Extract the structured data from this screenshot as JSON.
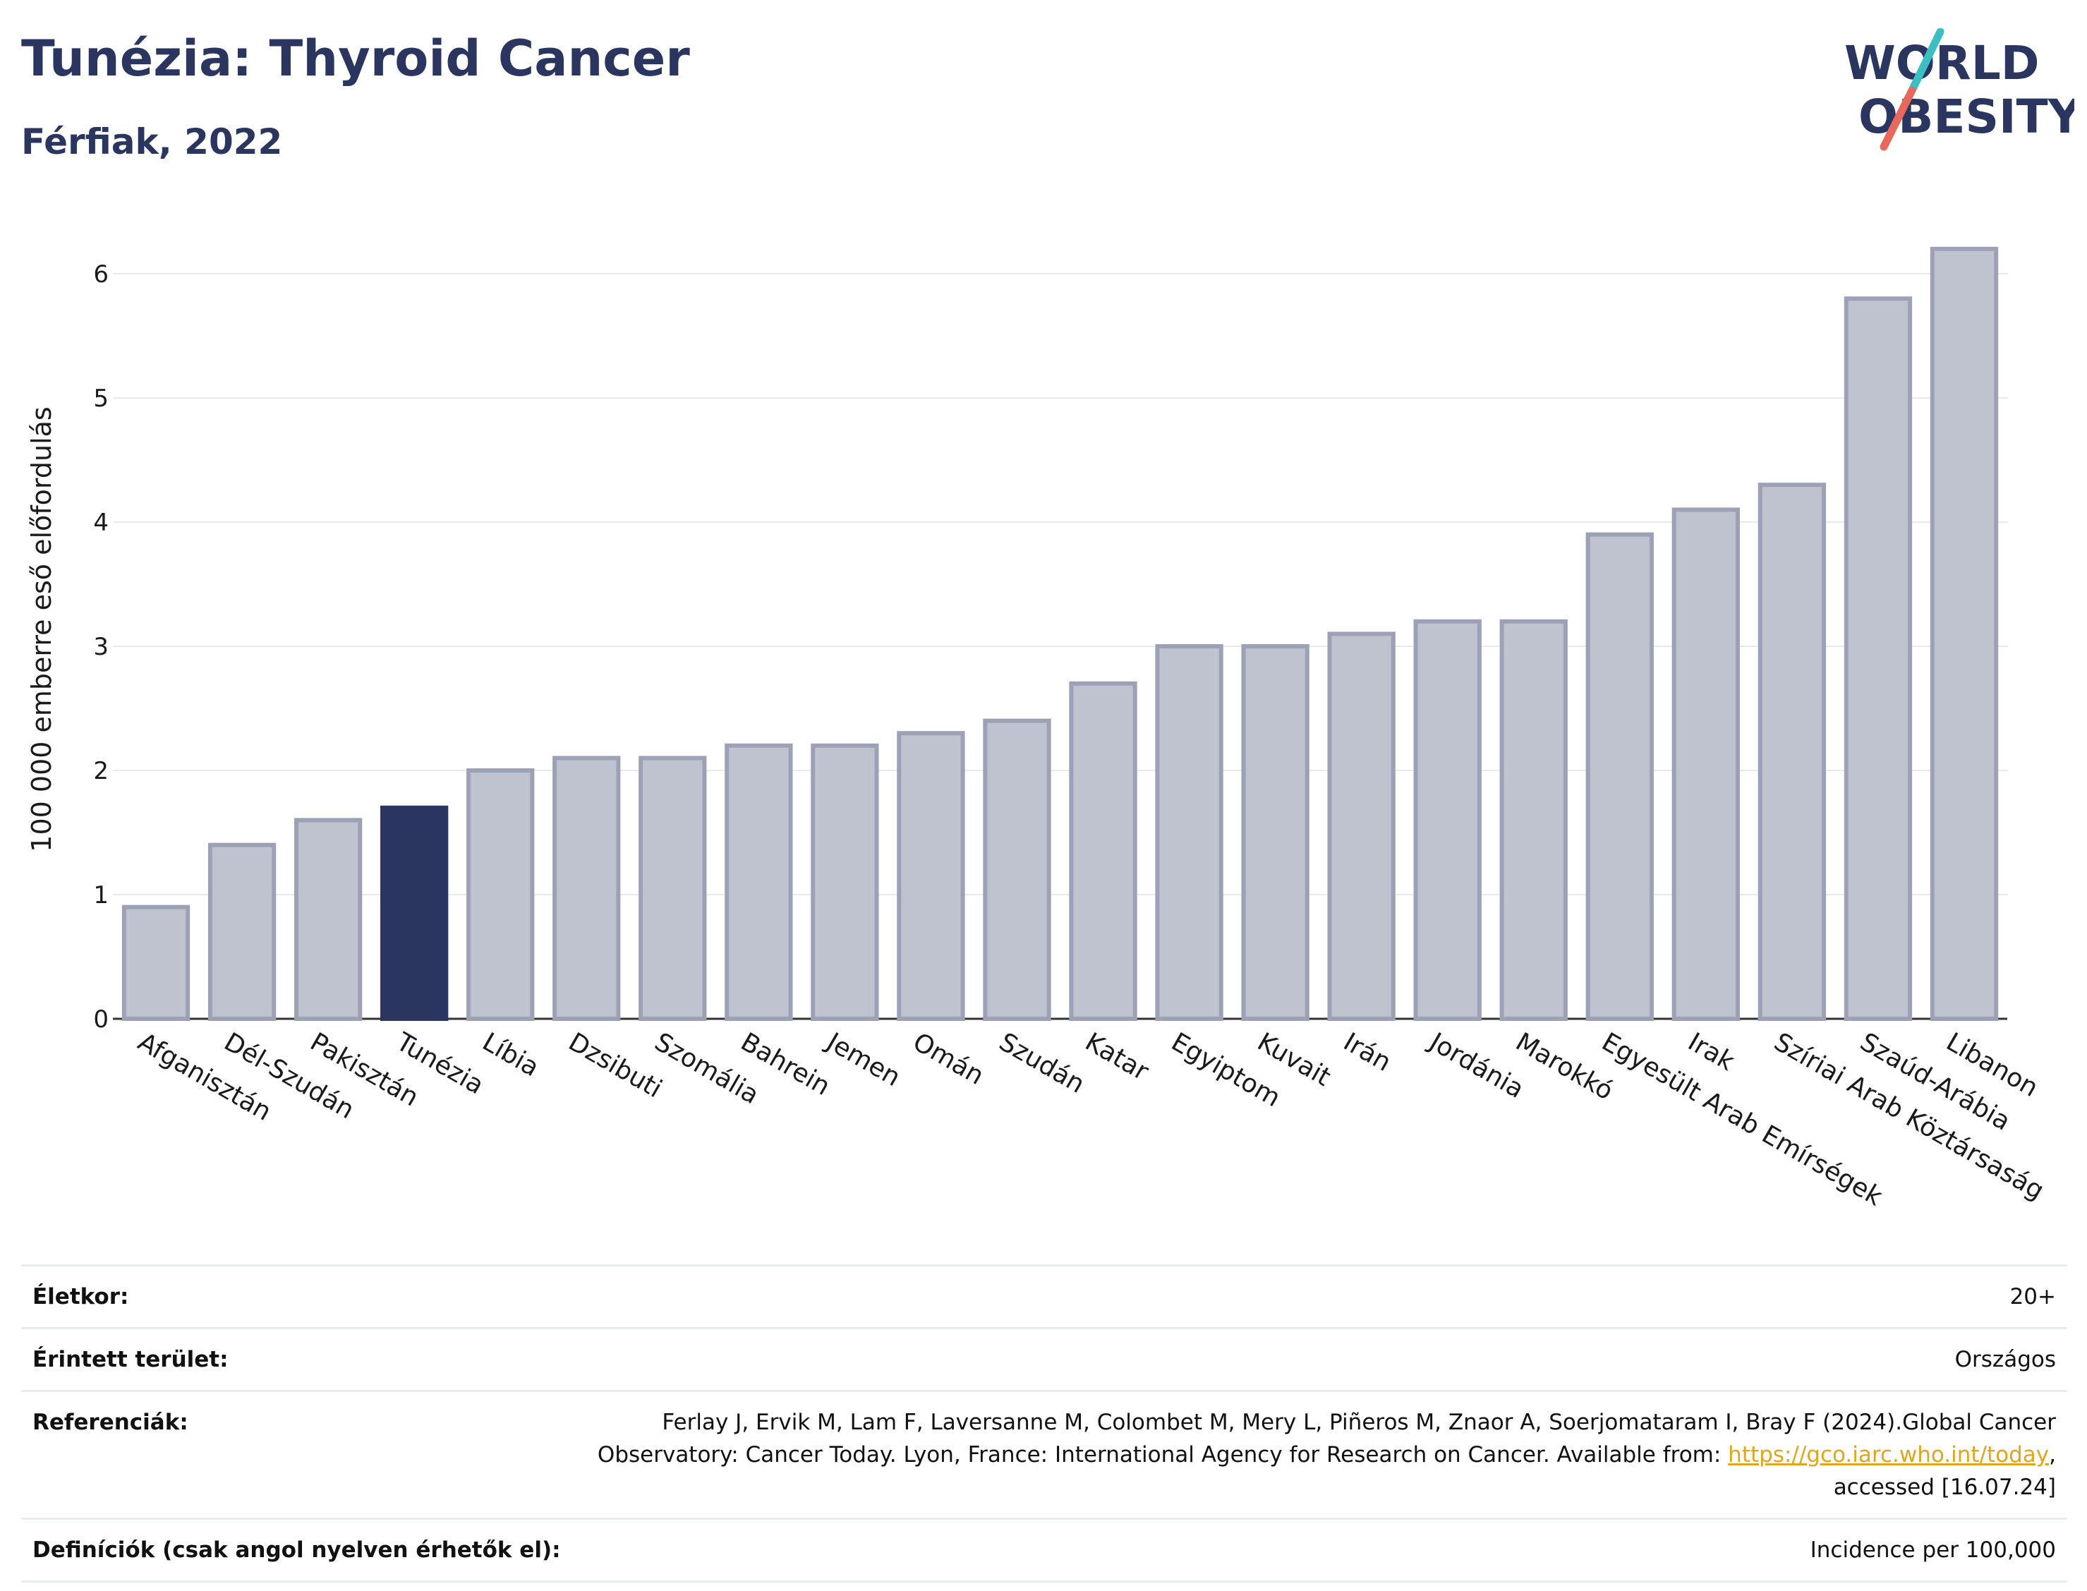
{
  "header": {
    "title": "Tunézia: Thyroid Cancer",
    "subtitle": "Férfiak, 2022"
  },
  "logo": {
    "line1": "WORLD",
    "line2": "OBESITY",
    "colors": {
      "text": "#2a3560",
      "slash_top": "#3bbfc3",
      "slash_bottom": "#e8685c"
    }
  },
  "chart_data": {
    "type": "bar",
    "ylabel": "100 000 emberre eső előfordulás",
    "ylim": [
      0,
      6.5
    ],
    "yticks": [
      0,
      1,
      2,
      3,
      4,
      5,
      6
    ],
    "grid": true,
    "highlight_color": "#2a3560",
    "bar_color": "#bfc2cf",
    "bar_edge_color": "#9da1b5",
    "categories": [
      "Afganisztán",
      "Dél-Szudán",
      "Pakisztán",
      "Tunézia",
      "Líbia",
      "Dzsibuti",
      "Szomália",
      "Bahrein",
      "Jemen",
      "Omán",
      "Szudán",
      "Katar",
      "Egyiptom",
      "Kuvait",
      "Irán",
      "Jordánia",
      "Marokkó",
      "Egyesült Arab Emírségek",
      "Irak",
      "Szíriai Arab Köztársaság",
      "Szaúd-Arábia",
      "Libanon"
    ],
    "values": [
      0.9,
      1.4,
      1.6,
      1.7,
      2.0,
      2.1,
      2.1,
      2.2,
      2.2,
      2.3,
      2.4,
      2.7,
      3.0,
      3.0,
      3.1,
      3.2,
      3.2,
      3.9,
      4.1,
      4.3,
      5.8,
      6.2
    ],
    "highlight": "Tunézia"
  },
  "info": {
    "rows": [
      {
        "label": "Életkor:",
        "value": "20+"
      },
      {
        "label": "Érintett terület:",
        "value": "Országos"
      },
      {
        "label": "Referenciák:",
        "value_line1": "Ferlay J, Ervik M, Lam F, Laversanne M, Colombet M, Mery L, Piñeros M, Znaor A, Soerjomataram I, Bray F (2024).Global Cancer",
        "value_line2_pre": "Observatory: Cancer Today. Lyon, France: International Agency for Research on Cancer. Available from: ",
        "link": "https://gco.iarc.who.int/today",
        "value_line2_post": ",",
        "value_line3": "accessed [16.07.24]"
      },
      {
        "label": "Definíciók (csak angol nyelven érhetők el):",
        "value": "Incidence per 100,000"
      }
    ]
  }
}
